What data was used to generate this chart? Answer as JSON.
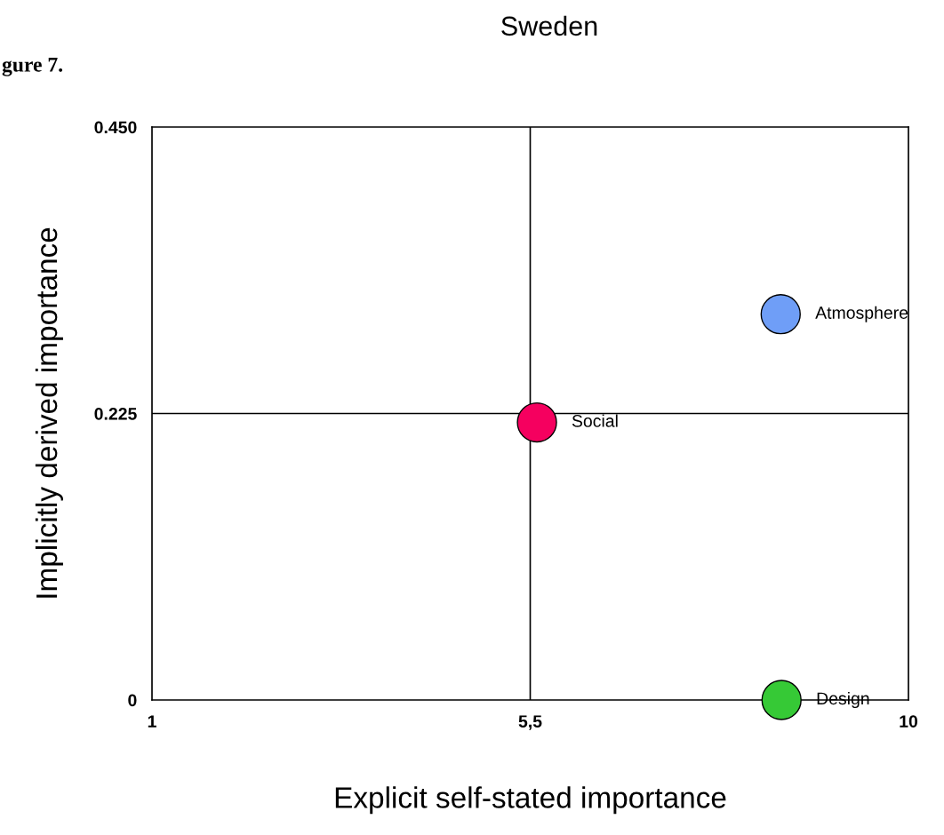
{
  "chart_data": {
    "type": "scatter",
    "title": "Sweden",
    "xlabel": "Explicit self-stated importance",
    "ylabel": "Implicitly derived importance",
    "annotations": [
      "gure 7."
    ],
    "xlim": [
      1,
      10
    ],
    "ylim": [
      0,
      0.45
    ],
    "xticks": [
      1,
      {
        "value": 5.5,
        "label": "5,5"
      },
      10
    ],
    "yticks": [
      0,
      {
        "value": 0.225,
        "label": "0.225"
      },
      {
        "value": 0.45,
        "label": "0.450"
      }
    ],
    "ref_lines": [
      {
        "axis": "x",
        "value": 5.5,
        "color": "#000000"
      },
      {
        "axis": "y",
        "value": 0.225,
        "color": "#000000"
      }
    ],
    "marker": "circle",
    "grid": false,
    "legend": false,
    "series": [
      {
        "name": "Atmosphere",
        "color": "#6f9ef7",
        "x": [
          8.48
        ],
        "values": [
          0.303
        ]
      },
      {
        "name": "Social",
        "color": "#f5005f",
        "x": [
          5.58
        ],
        "values": [
          0.218
        ]
      },
      {
        "name": "Design",
        "color": "#36c936",
        "x": [
          8.49
        ],
        "values": [
          0
        ]
      }
    ]
  }
}
